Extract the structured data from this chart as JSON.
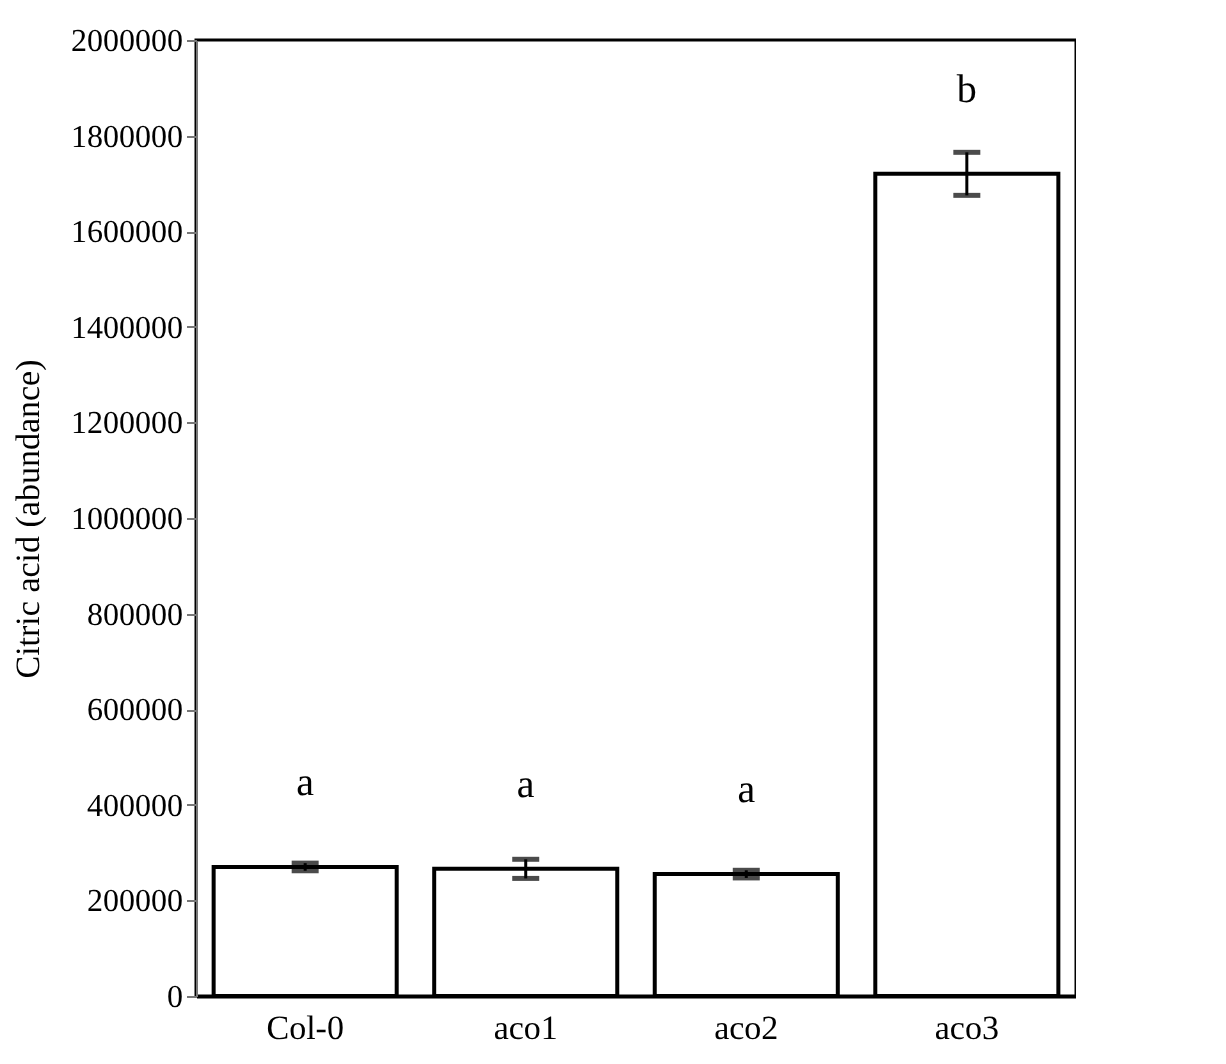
{
  "chart_data": {
    "type": "bar",
    "ylabel": "Citric acid (abundance)",
    "categories": [
      "Col-0",
      "aco1",
      "aco2",
      "aco3"
    ],
    "values": [
      270000,
      266000,
      255000,
      1720000
    ],
    "errors": [
      8000,
      20000,
      8000,
      45000
    ],
    "color": "#ffffff",
    "ylim": [
      0,
      2000000
    ],
    "yticks": [
      0,
      200000,
      400000,
      600000,
      800000,
      1000000,
      1200000,
      1400000,
      1600000,
      1800000,
      2000000
    ],
    "grid": false,
    "annotations": [
      {
        "text": "a",
        "x": "Col-0",
        "y": 270000
      },
      {
        "text": "a",
        "x": "aco1",
        "y": 266000
      },
      {
        "text": "a",
        "x": "aco2",
        "y": 255000
      },
      {
        "text": "b",
        "x": "aco3",
        "y": 1720000
      }
    ]
  }
}
